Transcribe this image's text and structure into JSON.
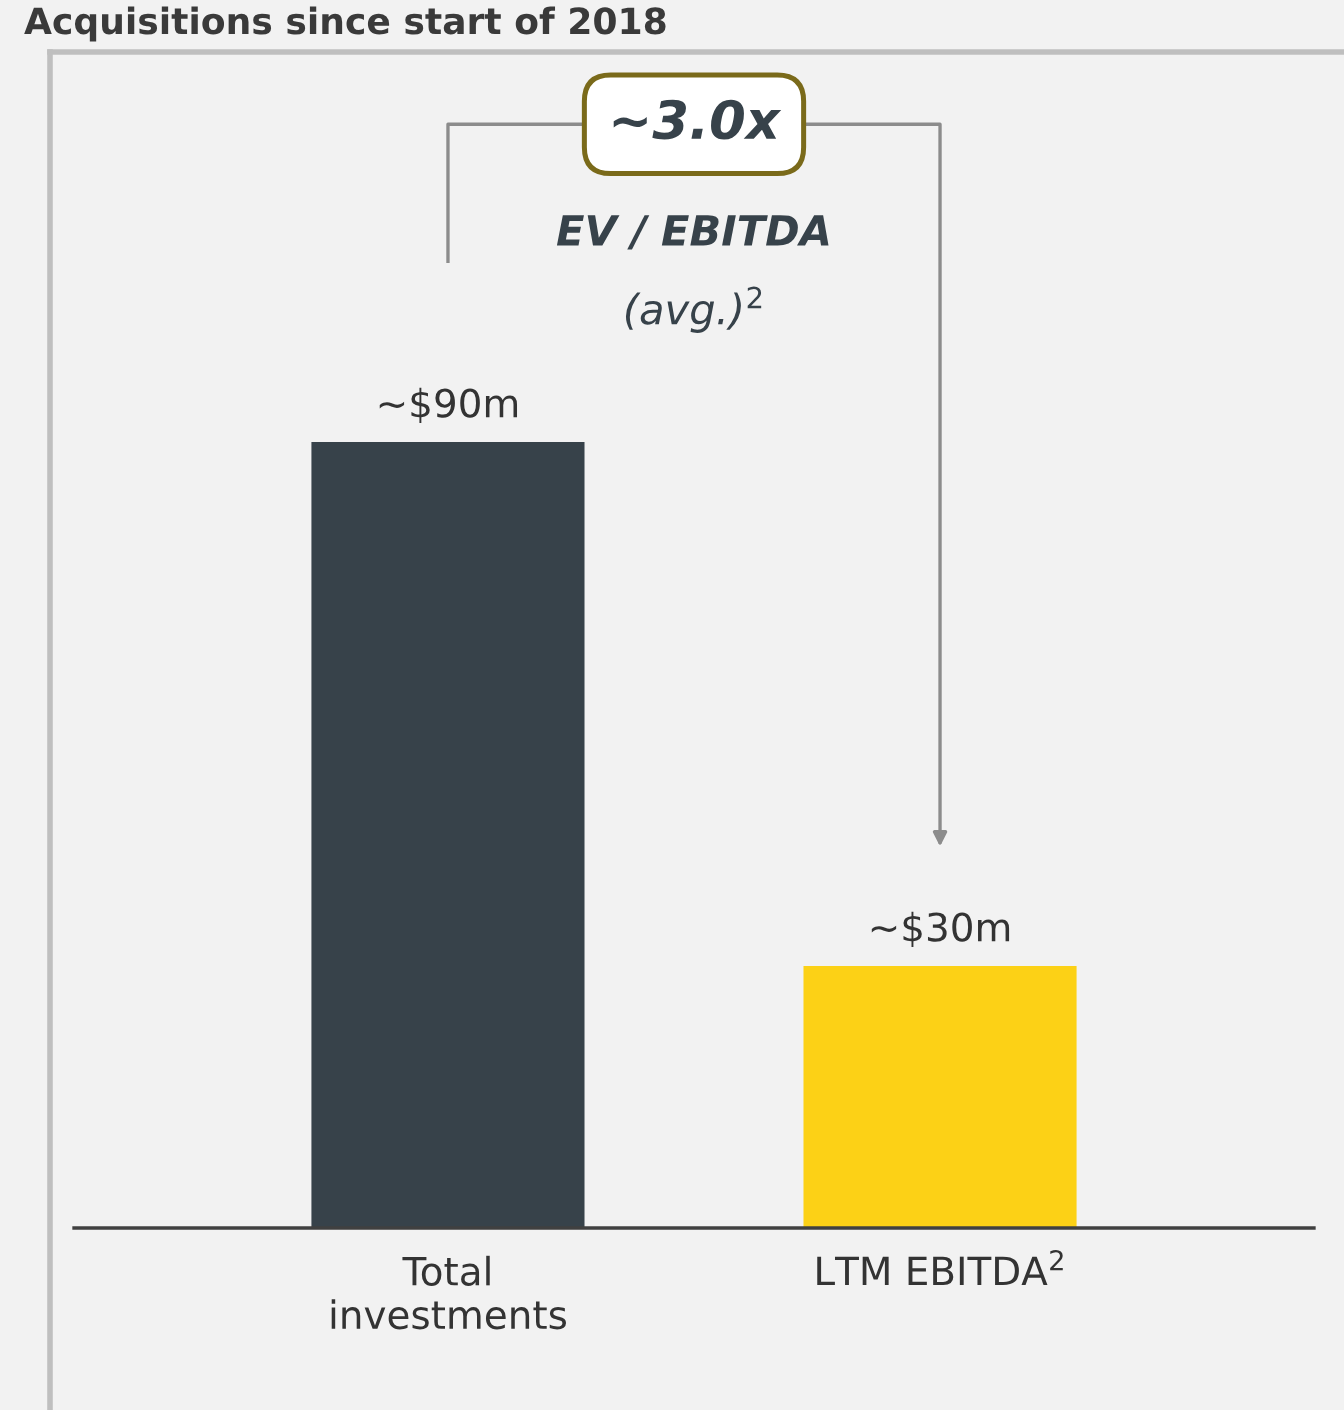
{
  "chart_data": {
    "type": "bar",
    "title": "Acquisitions since start of 2018",
    "categories": [
      "Total\ninvestments",
      "LTM EBITDA$^{2}$"
    ],
    "values": [
      90,
      30
    ],
    "value_labels": [
      "~$90m",
      "~$30m"
    ],
    "colors": [
      "#37424a",
      "#fcd116"
    ],
    "annotations": [
      "~3.0x",
      "EV / EBITDA",
      "(avg.)$^{2}$"
    ],
    "grid": false,
    "legend": false
  }
}
